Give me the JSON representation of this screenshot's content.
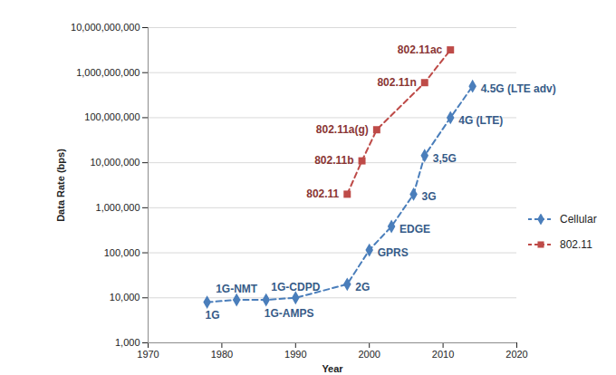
{
  "chart_data": {
    "type": "line",
    "x_label": "Year",
    "y_label": "Data Rate (bps)",
    "log": "y",
    "grid": true,
    "legend": "right",
    "xlim": [
      1970,
      2020
    ],
    "xticks": [
      1970,
      1980,
      1990,
      2000,
      2010,
      2020
    ],
    "ylim": [
      1000,
      10000000000
    ],
    "yticks": [
      {
        "value": 1000,
        "label": "1,000"
      },
      {
        "value": 10000,
        "label": "10,000"
      },
      {
        "value": 100000,
        "label": "100,000"
      },
      {
        "value": 1000000,
        "label": "1,000,000"
      },
      {
        "value": 10000000,
        "label": "10,000,000"
      },
      {
        "value": 100000000,
        "label": "100,000,000"
      },
      {
        "value": 1000000000,
        "label": "1,000,000,000"
      },
      {
        "value": 10000000000,
        "label": "10,000,000,000"
      }
    ],
    "series": [
      {
        "name": "Cellular",
        "color": "#4A7EBB",
        "marker": "diamond",
        "line_style": "dashed",
        "x": [
          1978,
          1982,
          1986,
          1990,
          1997,
          2000,
          2003,
          2006,
          2007.5,
          2011,
          2014
        ],
        "values": [
          8000,
          9000,
          9000,
          10000,
          20000,
          115000,
          384000,
          2000000,
          14400000,
          100000000,
          500000000
        ],
        "point_labels": [
          "1G",
          "1G-NMT",
          "1G-AMPS",
          "1G-CDPD",
          "2G",
          "GPRS",
          "EDGE",
          "3G",
          "3,5G",
          "4G (LTE)",
          "4.5G (LTE adv)"
        ]
      },
      {
        "name": "802.11",
        "color": "#BE4B48",
        "marker": "square",
        "line_style": "dashed",
        "x": [
          1997,
          1999,
          2001,
          2007.5,
          2011
        ],
        "values": [
          2000000,
          11000000,
          54000000,
          600000000,
          3200000000
        ],
        "point_labels": [
          "802.11",
          "802.11b",
          "802.11a(g)",
          "802.11n",
          "802.11ac"
        ]
      }
    ]
  }
}
